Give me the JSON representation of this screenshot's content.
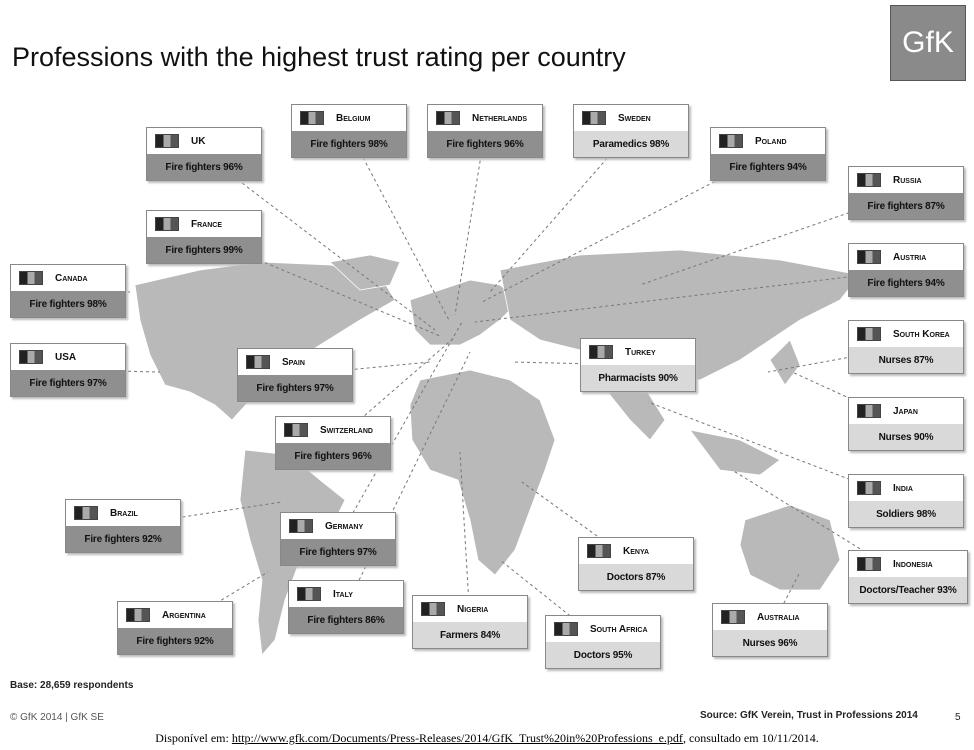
{
  "header": {
    "title": "Professions with the highest trust rating per country",
    "logo": "GfK"
  },
  "countries": [
    {
      "name": "UK",
      "label": "Fire fighters 96%"
    },
    {
      "name": "Belgium",
      "label": "Fire fighters 98%"
    },
    {
      "name": "Netherlands",
      "label": "Fire fighters 96%"
    },
    {
      "name": "Sweden",
      "label": "Paramedics 98%"
    },
    {
      "name": "Poland",
      "label": "Fire fighters 94%"
    },
    {
      "name": "Russia",
      "label": "Fire fighters 87%"
    },
    {
      "name": "Austria",
      "label": "Fire fighters 94%"
    },
    {
      "name": "France",
      "label": "Fire fighters 99%"
    },
    {
      "name": "Canada",
      "label": "Fire fighters 98%"
    },
    {
      "name": "USA",
      "label": "Fire fighters 97%"
    },
    {
      "name": "Spain",
      "label": "Fire fighters 97%"
    },
    {
      "name": "Turkey",
      "label": "Pharmacists 90%"
    },
    {
      "name": "South Korea",
      "label": "Nurses 87%"
    },
    {
      "name": "Japan",
      "label": "Nurses 90%"
    },
    {
      "name": "Switzerland",
      "label": "Fire fighters 96%"
    },
    {
      "name": "India",
      "label": "Soldiers 98%"
    },
    {
      "name": "Brazil",
      "label": "Fire fighters 92%"
    },
    {
      "name": "Germany",
      "label": "Fire fighters 97%"
    },
    {
      "name": "Kenya",
      "label": "Doctors 87%"
    },
    {
      "name": "Indonesia",
      "label": "Doctors/Teacher 93%"
    },
    {
      "name": "Italy",
      "label": "Fire fighters 86%"
    },
    {
      "name": "Argentina",
      "label": "Fire fighters 92%"
    },
    {
      "name": "Nigeria",
      "label": "Farmers 84%"
    },
    {
      "name": "South Africa",
      "label": "Doctors 95%"
    },
    {
      "name": "Australia",
      "label": "Nurses 96%"
    }
  ],
  "footer": {
    "base": "Base: 28,659 respondents",
    "copyright": "© GfK 2014 | GfK SE",
    "source": "Source: GfK Verein, Trust in Professions 2014",
    "page": "5"
  },
  "caption": {
    "prefix": "Disponível em: ",
    "url": "http://www.gfk.com/Documents/Press-Releases/2014/GfK_Trust%20in%20Professions_e.pdf",
    "suffix": ", consultado em 10/11/2014."
  }
}
